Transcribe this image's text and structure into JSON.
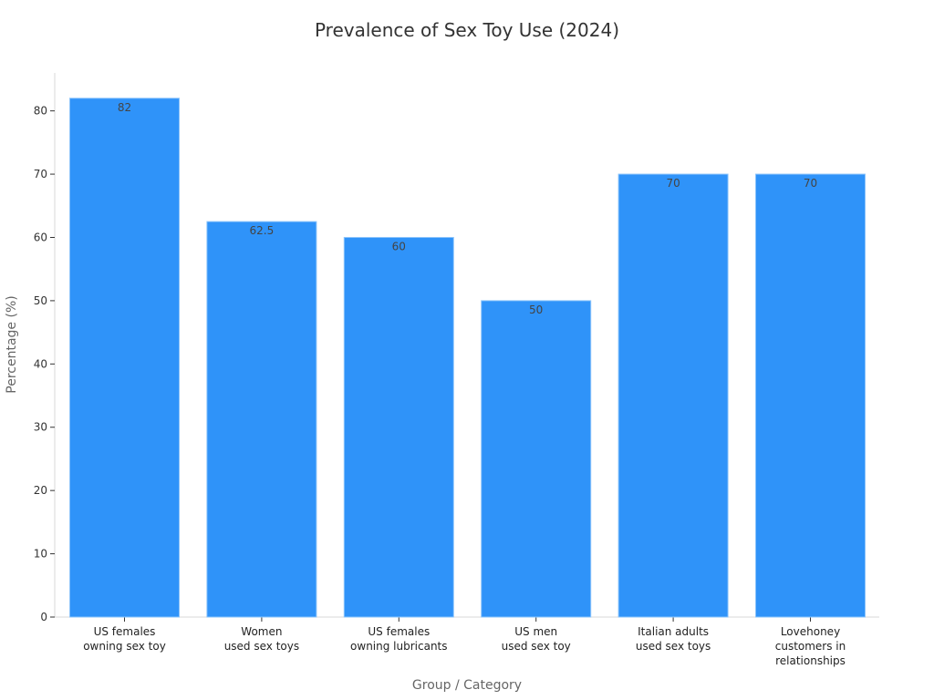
{
  "chart_data": {
    "type": "bar",
    "title": "Prevalence of Sex Toy Use (2024)",
    "xlabel": "Group / Category",
    "ylabel": "Percentage (%)",
    "categories": [
      [
        "US females",
        "owning sex toy"
      ],
      [
        "Women",
        "used sex toys"
      ],
      [
        "US females",
        "owning lubricants"
      ],
      [
        "US men",
        "used sex toy"
      ],
      [
        "Italian adults",
        "used sex toys"
      ],
      [
        "Lovehoney",
        "customers in",
        "relationships"
      ]
    ],
    "values": [
      82,
      62.5,
      60,
      50,
      70,
      70
    ],
    "value_labels": [
      "82",
      "62.5",
      "60",
      "50",
      "70",
      "70"
    ],
    "ylim": [
      0,
      86
    ],
    "yticks": [
      0,
      10,
      20,
      30,
      40,
      50,
      60,
      70,
      80
    ],
    "grid": false,
    "bar_color": "#2f93f9"
  }
}
